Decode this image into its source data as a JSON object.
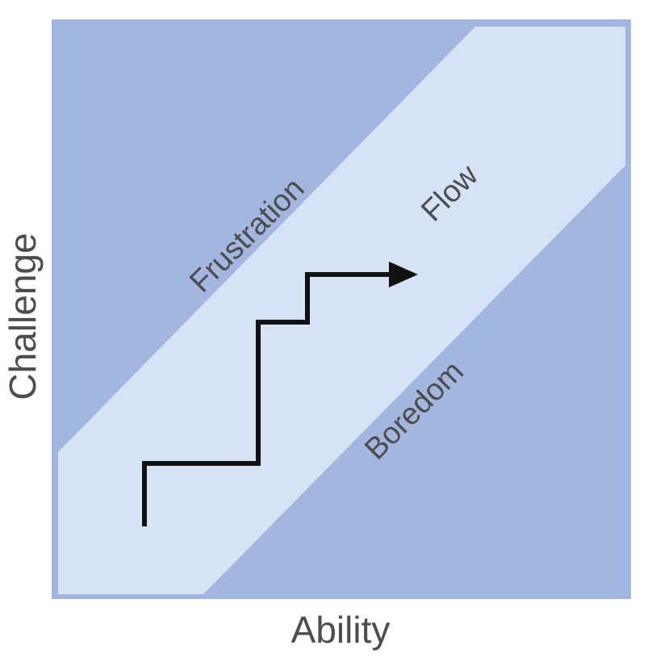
{
  "axes": {
    "x_label": "Ability",
    "y_label": "Challenge"
  },
  "zones": {
    "frustration": "Frustration",
    "flow": "Flow",
    "boredom": "Boredom"
  },
  "colors": {
    "outer_zone": "#a3b6df",
    "flow_channel": "#d5e3f4",
    "path": "#111111",
    "label_text": "#4d4d4f"
  }
}
